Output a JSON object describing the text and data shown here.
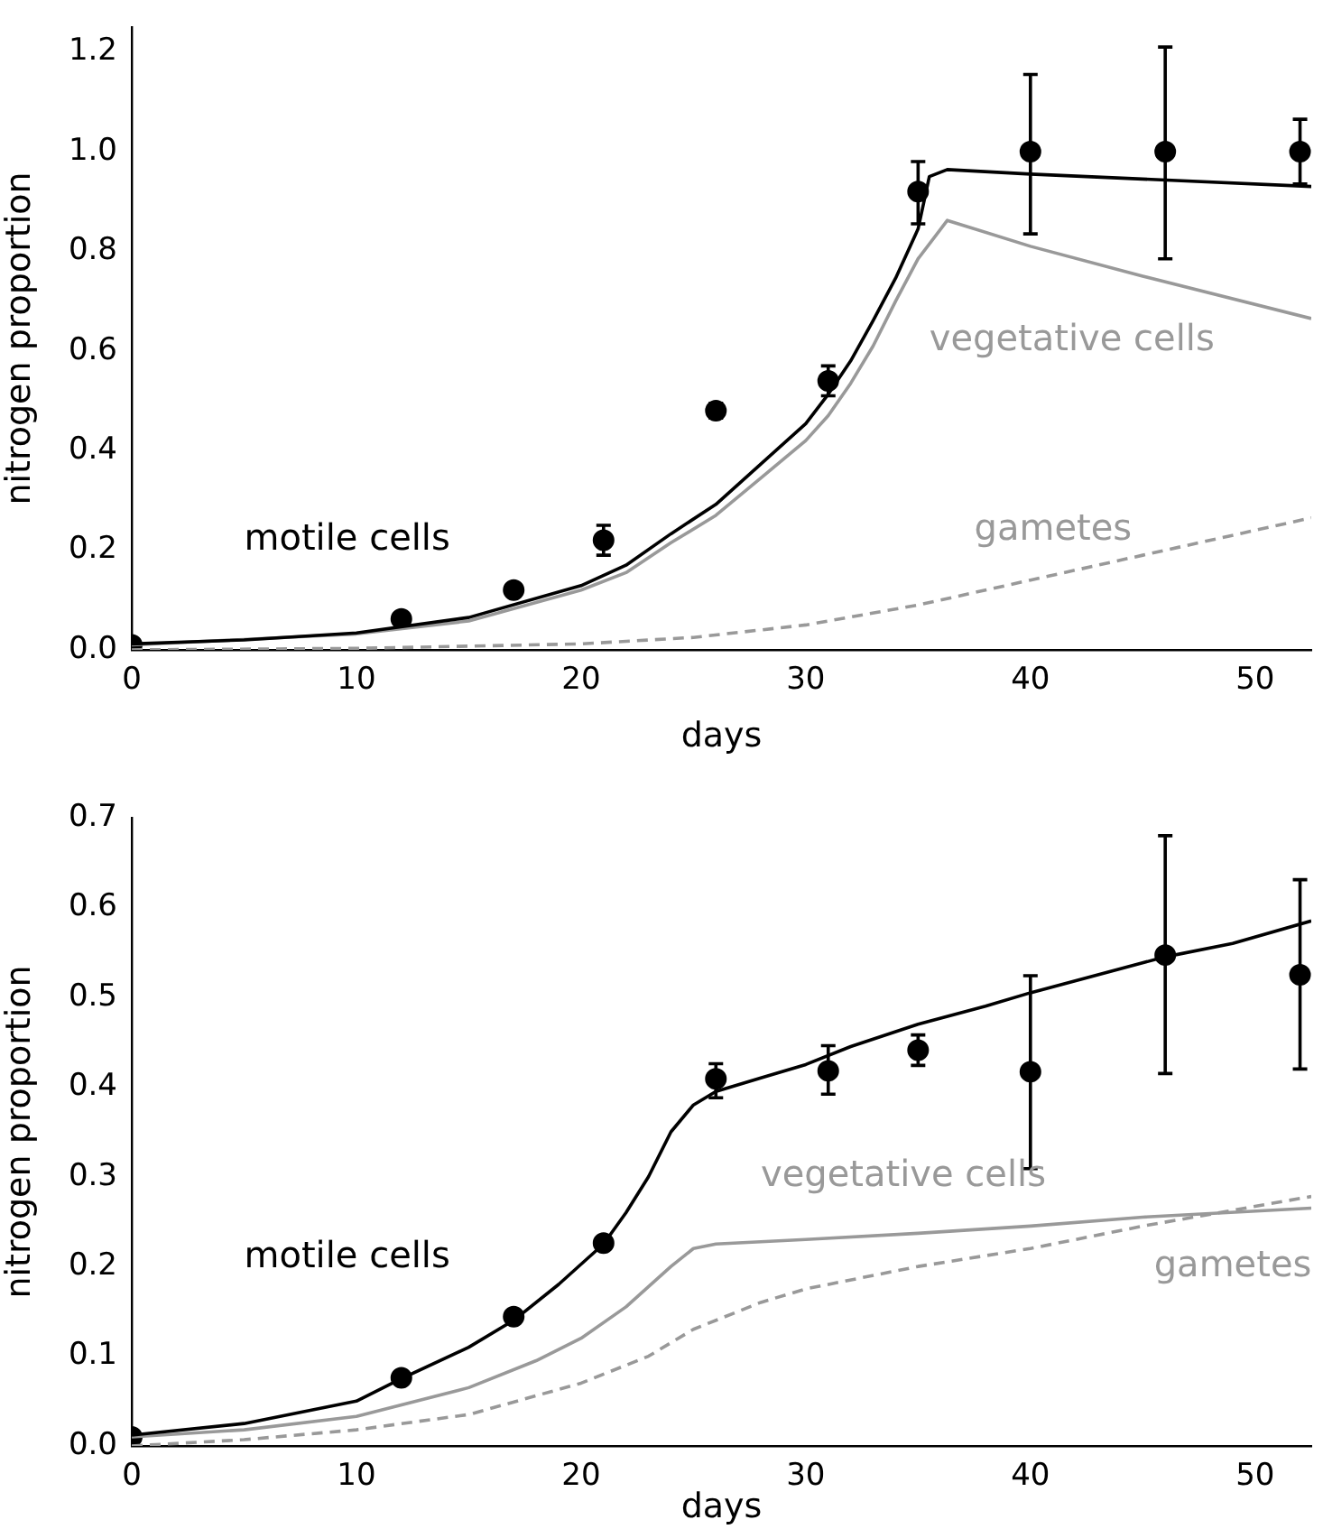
{
  "chart_data": [
    {
      "type": "line",
      "xlabel": "days",
      "ylabel": "nitrogen proportion",
      "xlim": [
        0,
        52.5
      ],
      "ylim": [
        0,
        1.25
      ],
      "xticks": [
        0,
        10,
        20,
        30,
        40,
        50
      ],
      "yticks": [
        {
          "value": 0,
          "label": "0.0"
        },
        {
          "value": 0.2,
          "label": "0.2"
        },
        {
          "value": 0.4,
          "label": "0.4"
        },
        {
          "value": 0.6,
          "label": "0.6"
        },
        {
          "value": 0.8,
          "label": "0.8"
        },
        {
          "value": 1,
          "label": "1.0"
        },
        {
          "value": 1.2,
          "label": "1.2"
        }
      ],
      "grid": false,
      "legend": false,
      "series": [
        {
          "type": "line",
          "name": "motile cells",
          "color": "#000000",
          "line_style": "solid",
          "x": [
            0,
            5,
            10,
            15,
            20,
            22,
            24,
            26,
            28,
            30,
            31,
            32,
            33,
            34,
            35,
            35.5,
            36.3,
            40,
            45,
            52.5
          ],
          "values": [
            0.012,
            0.02,
            0.034,
            0.065,
            0.129,
            0.17,
            0.233,
            0.292,
            0.373,
            0.454,
            0.513,
            0.58,
            0.661,
            0.746,
            0.845,
            0.95,
            0.964,
            0.955,
            0.945,
            0.93
          ]
        },
        {
          "type": "line",
          "name": "vegetative cells",
          "color": "#999999",
          "line_style": "solid",
          "x": [
            0,
            10,
            15,
            20,
            22,
            24,
            26,
            28,
            30,
            31,
            32,
            33,
            34,
            35,
            36.3,
            40,
            45,
            52.5
          ],
          "values": [
            0.01,
            0.032,
            0.058,
            0.12,
            0.155,
            0.215,
            0.27,
            0.345,
            0.42,
            0.47,
            0.535,
            0.61,
            0.7,
            0.785,
            0.862,
            0.81,
            0.75,
            0.665
          ]
        },
        {
          "type": "line",
          "name": "gametes",
          "color": "#999999",
          "line_style": "dashed",
          "x": [
            0,
            10,
            20,
            25,
            30,
            35,
            40,
            45,
            52.5
          ],
          "values": [
            0,
            0.003,
            0.012,
            0.025,
            0.05,
            0.09,
            0.14,
            0.19,
            0.265
          ]
        },
        {
          "type": "scatter",
          "color": "#000000",
          "marker": "circle",
          "x": [
            0,
            12,
            17,
            21,
            26,
            31,
            35,
            40,
            46,
            52
          ],
          "values": [
            0.01,
            0.062,
            0.12,
            0.22,
            0.48,
            0.54,
            0.92,
            1.0,
            1.0,
            1.0
          ],
          "errors": [
            null,
            null,
            null,
            [
              0.19,
              0.25
            ],
            [
              0.465,
              0.495
            ],
            [
              0.51,
              0.57
            ],
            [
              0.855,
              0.98
            ],
            [
              0.835,
              1.155
            ],
            [
              0.785,
              1.21
            ],
            [
              0.935,
              1.065
            ]
          ]
        }
      ]
    },
    {
      "type": "line",
      "xlabel": "days",
      "ylabel": "nitrogen proportion",
      "xlim": [
        0,
        52.5
      ],
      "ylim": [
        0,
        0.7
      ],
      "xticks": [
        0,
        10,
        20,
        30,
        40,
        50
      ],
      "yticks": [
        {
          "value": 0,
          "label": "0.0"
        },
        {
          "value": 0.1,
          "label": "0.1"
        },
        {
          "value": 0.2,
          "label": "0.2"
        },
        {
          "value": 0.3,
          "label": "0.3"
        },
        {
          "value": 0.4,
          "label": "0.4"
        },
        {
          "value": 0.5,
          "label": "0.5"
        },
        {
          "value": 0.6,
          "label": "0.6"
        },
        {
          "value": 0.7,
          "label": "0.7"
        }
      ],
      "grid": false,
      "legend": false,
      "series": [
        {
          "type": "line",
          "name": "motile cells",
          "color": "#000000",
          "line_style": "solid",
          "x": [
            0,
            5,
            10,
            12,
            15,
            17,
            19,
            21,
            22,
            23,
            24,
            25,
            26,
            28,
            30,
            32,
            35,
            38,
            40,
            43,
            46,
            49,
            52.5
          ],
          "values": [
            0.012,
            0.025,
            0.05,
            0.075,
            0.11,
            0.14,
            0.18,
            0.225,
            0.26,
            0.3,
            0.35,
            0.38,
            0.395,
            0.41,
            0.425,
            0.445,
            0.47,
            0.49,
            0.505,
            0.525,
            0.545,
            0.56,
            0.585
          ]
        },
        {
          "type": "line",
          "name": "vegetative cells",
          "color": "#999999",
          "line_style": "solid",
          "x": [
            0,
            5,
            10,
            15,
            18,
            20,
            22,
            24,
            25,
            26,
            30,
            35,
            40,
            45,
            52.5
          ],
          "values": [
            0.01,
            0.018,
            0.033,
            0.065,
            0.095,
            0.12,
            0.155,
            0.2,
            0.22,
            0.225,
            0.23,
            0.237,
            0.245,
            0.255,
            0.265
          ]
        },
        {
          "type": "line",
          "name": "gametes",
          "color": "#999999",
          "line_style": "dashed",
          "x": [
            0,
            5,
            10,
            15,
            20,
            23,
            25,
            28,
            30,
            35,
            40,
            45,
            52.5
          ],
          "values": [
            0,
            0.007,
            0.018,
            0.035,
            0.07,
            0.1,
            0.13,
            0.16,
            0.175,
            0.2,
            0.22,
            0.245,
            0.278
          ]
        },
        {
          "type": "scatter",
          "color": "#000000",
          "marker": "circle",
          "x": [
            0,
            12,
            17,
            21,
            26,
            31,
            35,
            40,
            46,
            52
          ],
          "values": [
            0.01,
            0.076,
            0.144,
            0.226,
            0.409,
            0.418,
            0.441,
            0.417,
            0.547,
            0.525
          ],
          "errors": [
            null,
            null,
            null,
            null,
            [
              0.388,
              0.426
            ],
            [
              0.392,
              0.446
            ],
            [
              0.424,
              0.458
            ],
            [
              0.309,
              0.524
            ],
            [
              0.415,
              0.68
            ],
            [
              0.42,
              0.631
            ]
          ]
        }
      ]
    }
  ]
}
